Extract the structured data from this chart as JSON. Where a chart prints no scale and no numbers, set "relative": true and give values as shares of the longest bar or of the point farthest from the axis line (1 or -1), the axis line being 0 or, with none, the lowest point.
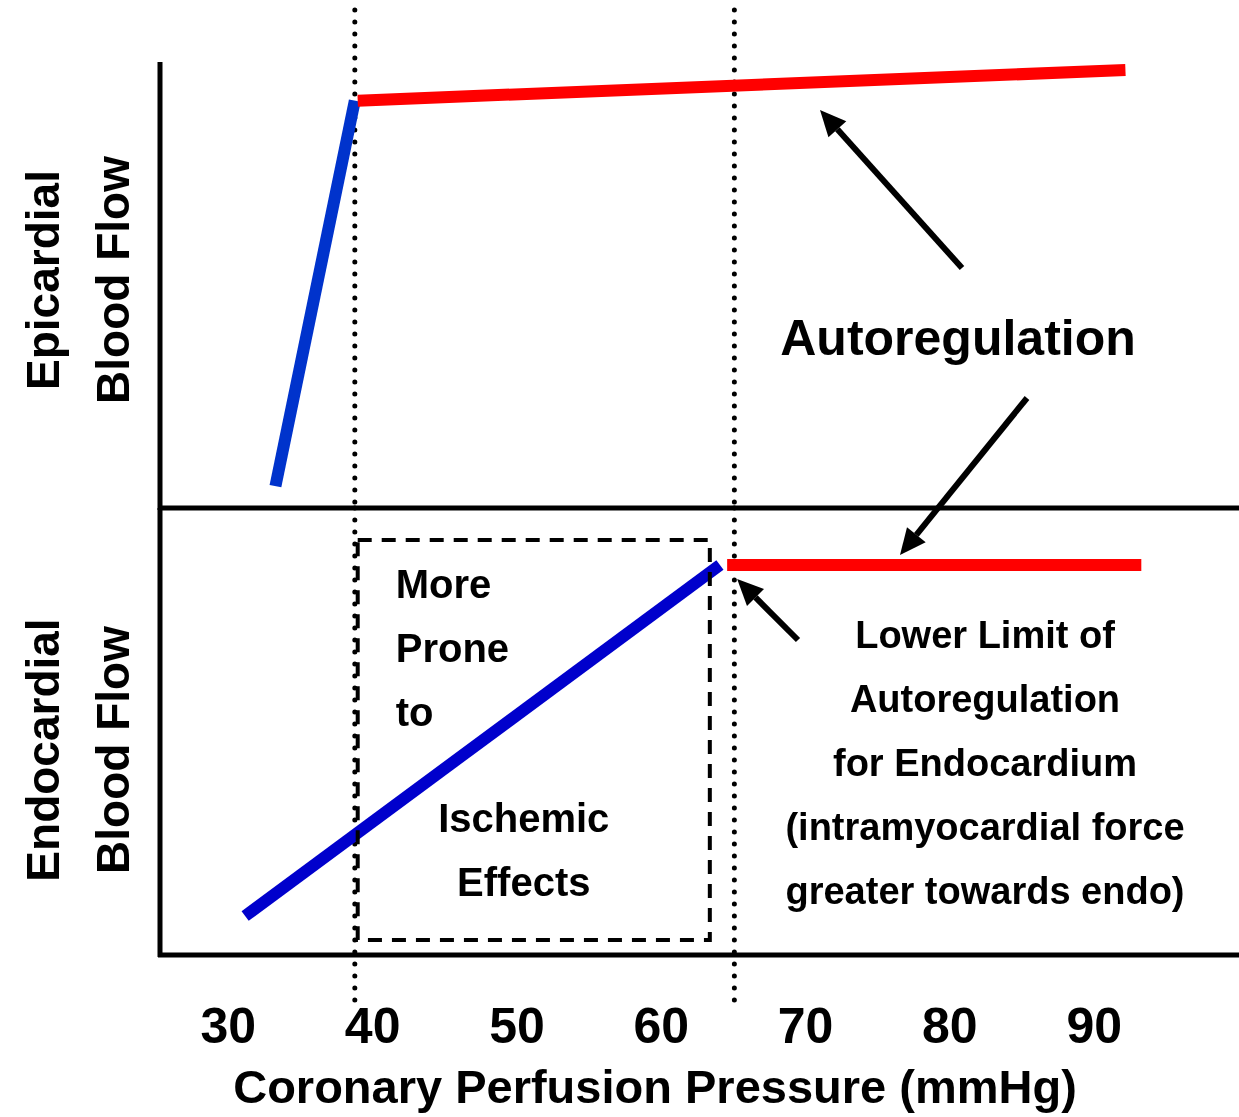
{
  "chart_data": [
    {
      "type": "line",
      "ylabel": "Epicardial\nBlood Flow",
      "relative": true,
      "xlim": [
        25.3,
        100
      ],
      "tick_labels": false,
      "line_style": "solid",
      "marker": "none",
      "series": [
        {
          "color": "#0033cc",
          "x": [
            33.3,
            38.8
          ],
          "values": [
            0.05,
            0.93
          ]
        },
        {
          "color": "#ff0000",
          "x": [
            39.0,
            92.2
          ],
          "values": [
            0.93,
            1
          ]
        }
      ],
      "ref_lines": [
        {
          "axis": "x",
          "value": 38.8,
          "line_style": "dotted",
          "color": "#000000"
        },
        {
          "axis": "x",
          "value": 65.1,
          "line_style": "dotted",
          "color": "#000000"
        }
      ],
      "annotations": [
        "Autoregulation"
      ]
    },
    {
      "type": "line",
      "ylabel": "Endocardial\nBlood Flow",
      "xlabel": "Coronary Perfusion Pressure (mmHg)",
      "relative": true,
      "xlim": [
        25.3,
        100
      ],
      "xticks": [
        30,
        40,
        50,
        60,
        70,
        80,
        90
      ],
      "tick_labels": "x",
      "line_style": "solid",
      "marker": "none",
      "series": [
        {
          "color": "#0000cc",
          "x": [
            31.2,
            64.1
          ],
          "values": [
            0.1,
            1
          ]
        },
        {
          "color": "#ff0000",
          "x": [
            64.6,
            93.3
          ],
          "values": [
            1,
            1
          ]
        }
      ],
      "ref_lines": [
        {
          "axis": "x",
          "value": 38.8,
          "line_style": "dotted",
          "color": "#000000"
        },
        {
          "axis": "x",
          "value": 65.1,
          "line_style": "dotted",
          "color": "#000000"
        }
      ],
      "annotations": [
        "More Prone to Ischemic Effects",
        {
          "text": "Lower Limit of\nAutoregulation\nfor Endocardium\n(intramyocardial force\ngreater towards endo)",
          "x": 64.6,
          "y": 1
        }
      ]
    }
  ]
}
